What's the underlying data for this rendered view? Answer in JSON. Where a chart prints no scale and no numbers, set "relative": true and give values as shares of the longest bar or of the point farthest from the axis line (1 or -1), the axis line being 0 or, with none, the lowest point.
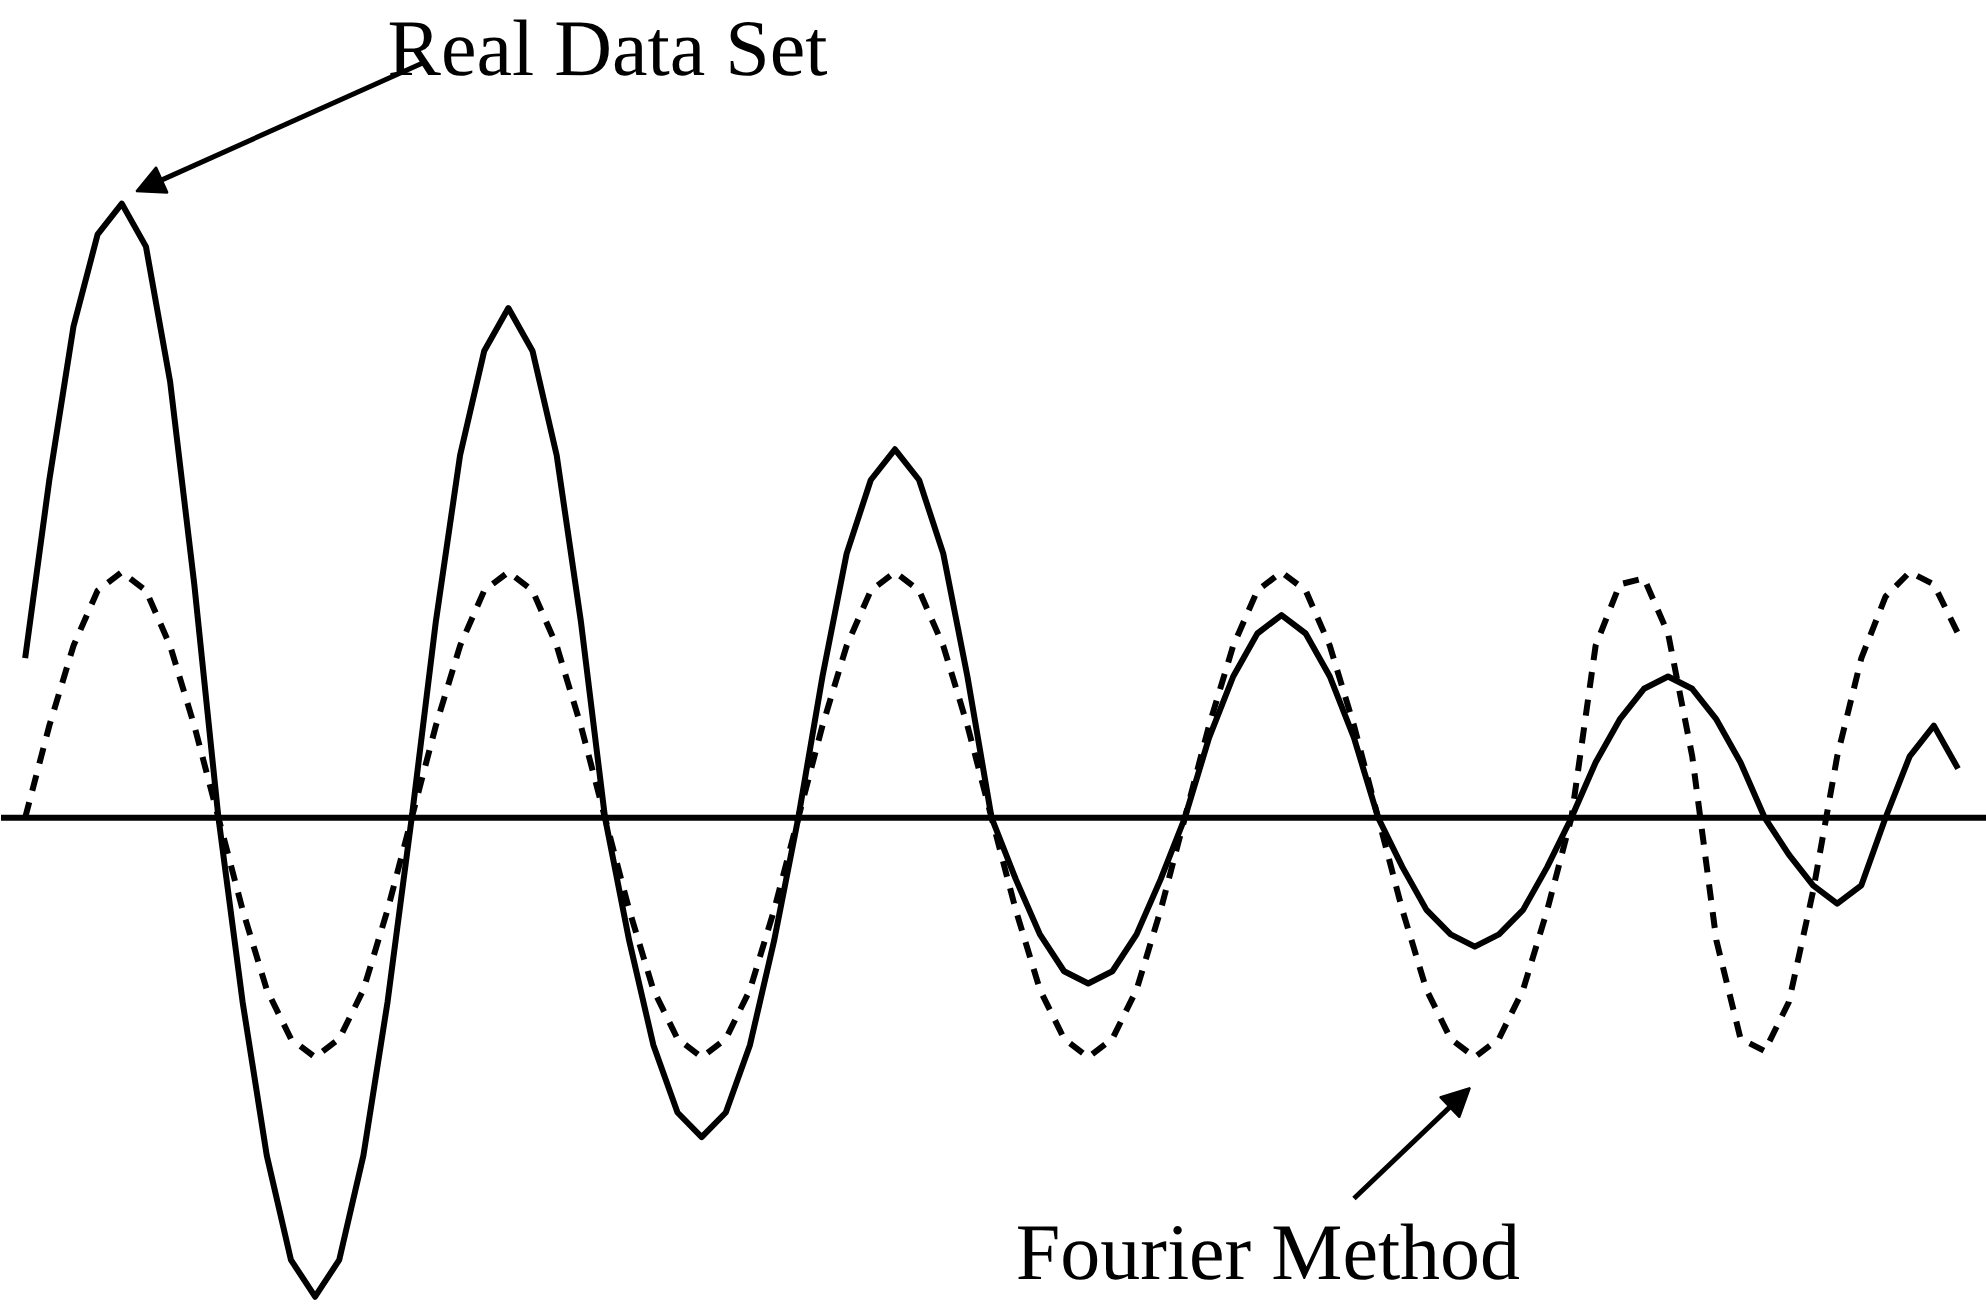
{
  "chart_data": {
    "type": "line",
    "relative": true,
    "grid": false,
    "tick_labels": false,
    "annotations": [
      "Real Data Set",
      "Fourier Method"
    ],
    "categories": [
      null,
      null,
      null,
      null,
      null,
      null,
      null,
      null,
      null,
      null,
      null,
      null,
      null,
      null,
      null,
      null,
      null,
      null,
      null,
      null,
      null,
      null,
      null,
      null,
      null,
      null,
      null,
      null,
      null,
      null,
      null,
      null,
      null,
      null,
      null,
      null,
      null,
      null,
      null,
      null,
      null,
      null,
      null,
      null,
      null,
      null,
      null,
      null,
      null,
      null,
      null,
      null,
      null,
      null,
      null,
      null,
      null,
      null,
      null,
      null,
      null,
      null,
      null,
      null,
      null,
      null,
      null,
      null,
      null,
      null,
      null,
      null,
      null,
      null,
      null,
      null,
      null,
      null,
      null,
      null,
      null
    ],
    "series": [
      {
        "color": "#000000",
        "line_style": "solid",
        "values": [
          0.26,
          0.55,
          0.8,
          0.95,
          1,
          0.93,
          0.71,
          0.38,
          0,
          -0.3,
          -0.55,
          -0.72,
          -0.78,
          -0.72,
          -0.55,
          -0.3,
          0,
          0.32,
          0.59,
          0.76,
          0.83,
          0.76,
          0.59,
          0.32,
          0,
          -0.2,
          -0.37,
          -0.48,
          -0.52,
          -0.48,
          -0.37,
          -0.2,
          0,
          0.23,
          0.43,
          0.55,
          0.6,
          0.55,
          0.43,
          0.23,
          0,
          -0.1,
          -0.19,
          -0.25,
          -0.27,
          -0.25,
          -0.19,
          -0.1,
          0,
          0.13,
          0.23,
          0.3,
          0.33,
          0.3,
          0.23,
          0.13,
          0,
          -0.08,
          -0.15,
          -0.19,
          -0.21,
          -0.19,
          -0.15,
          -0.08,
          0,
          0.09,
          0.16,
          0.21,
          0.23,
          0.21,
          0.16,
          0.09,
          0,
          -0.06,
          -0.11,
          -0.14,
          -0.11,
          0,
          0.1,
          0.15,
          0.08
        ]
      },
      {
        "color": "#000000",
        "line_style": "dashed",
        "values": [
          0,
          0.15,
          0.28,
          0.37,
          0.4,
          0.37,
          0.28,
          0.15,
          0,
          -0.15,
          -0.28,
          -0.36,
          -0.39,
          -0.36,
          -0.28,
          -0.15,
          0,
          0.15,
          0.28,
          0.37,
          0.4,
          0.37,
          0.28,
          0.15,
          0,
          -0.15,
          -0.28,
          -0.36,
          -0.39,
          -0.36,
          -0.28,
          -0.15,
          0,
          0.15,
          0.28,
          0.37,
          0.4,
          0.37,
          0.28,
          0.15,
          0,
          -0.15,
          -0.28,
          -0.36,
          -0.39,
          -0.36,
          -0.28,
          -0.15,
          0,
          0.15,
          0.28,
          0.37,
          0.4,
          0.37,
          0.28,
          0.15,
          0,
          -0.15,
          -0.28,
          -0.36,
          -0.39,
          -0.36,
          -0.28,
          -0.15,
          0,
          0.28,
          0.38,
          0.39,
          0.3,
          0.1,
          -0.2,
          -0.36,
          -0.38,
          -0.3,
          -0.12,
          0.1,
          0.26,
          0.36,
          0.4,
          0.38,
          0.3
        ]
      }
    ]
  }
}
